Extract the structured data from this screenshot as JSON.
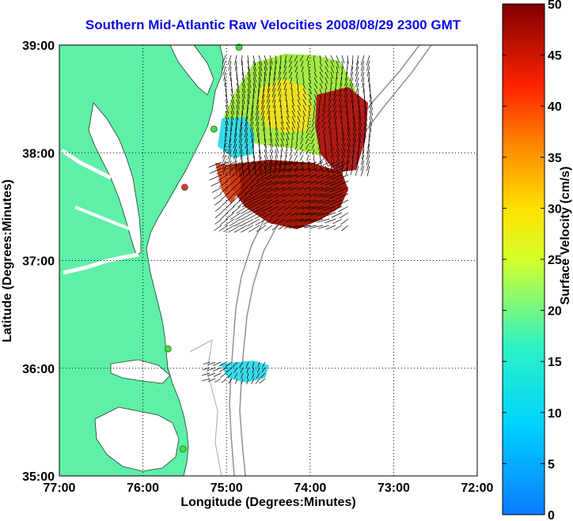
{
  "title": "Southern Mid-Atlantic Raw Velocities 2008/08/29 2300 GMT",
  "map": {
    "xlabel": "Longitude (Degrees:Minutes)",
    "ylabel": "Latitude (Degrees:Minutes)",
    "lon_range": [
      -77,
      -72
    ],
    "lat_range": [
      35,
      39
    ],
    "x_ticks": [
      {
        "value": -77,
        "label": "77:00"
      },
      {
        "value": -76,
        "label": "76:00"
      },
      {
        "value": -75,
        "label": "75:00"
      },
      {
        "value": -74,
        "label": "74:00"
      },
      {
        "value": -73,
        "label": "73:00"
      },
      {
        "value": -72,
        "label": "72:00"
      }
    ],
    "y_ticks": [
      {
        "value": 39,
        "label": "39:00"
      },
      {
        "value": 38,
        "label": "38:00"
      },
      {
        "value": 37,
        "label": "37:00"
      },
      {
        "value": 36,
        "label": "36:00"
      },
      {
        "value": 35,
        "label": "35:00"
      }
    ],
    "grid": "dotted",
    "land_color": "#5ef0a8",
    "sea_color": "#ffffff",
    "contour_color": "#909090",
    "stations": [
      {
        "lon": -74.85,
        "lat": 38.98,
        "color": "#44dd44"
      },
      {
        "lon": -75.15,
        "lat": 38.22,
        "color": "#44dd44"
      },
      {
        "lon": -75.5,
        "lat": 37.68,
        "color": "#ee3333"
      },
      {
        "lon": -75.7,
        "lat": 36.18,
        "color": "#44dd44"
      },
      {
        "lon": -75.52,
        "lat": 35.25,
        "color": "#44dd44"
      }
    ]
  },
  "colorbar": {
    "label": "Surface Velocity (cm/s)",
    "min": 0,
    "max": 50,
    "ticks": [
      "0",
      "5",
      "10",
      "15",
      "20",
      "25",
      "30",
      "35",
      "40",
      "45",
      "50"
    ],
    "colormap": "jet"
  }
}
